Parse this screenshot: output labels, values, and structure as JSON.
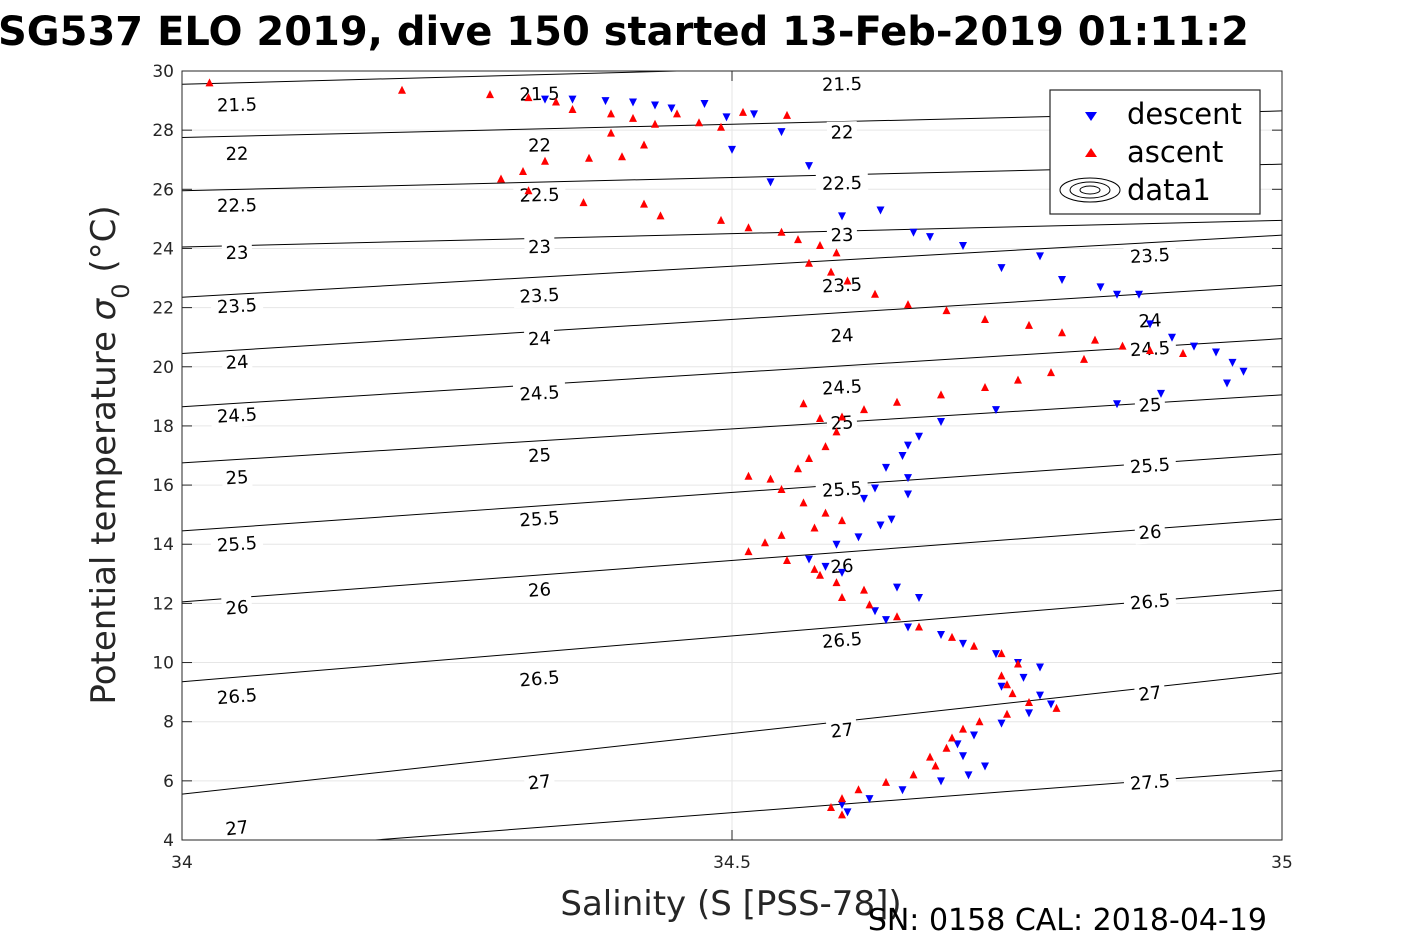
{
  "chart_data": {
    "type": "scatter",
    "title": "SG537 ELO 2019, dive 150 started 13-Feb-2019 01:11:2",
    "xlabel": "Salinity (S [PSS-78])",
    "ylabel_main": "Potential temperature ",
    "ylabel_symbol": "σ",
    "ylabel_sub": "0",
    "ylabel_unit": " (°C)",
    "footer": "SN: 0158  CAL: 2018-04-19",
    "xlim": [
      34,
      35
    ],
    "ylim": [
      4,
      30
    ],
    "x_ticks": [
      34,
      34.5,
      35
    ],
    "x_tick_labels": [
      "34",
      "34.5",
      "35"
    ],
    "y_ticks": [
      4,
      6,
      8,
      10,
      12,
      14,
      16,
      18,
      20,
      22,
      24,
      26,
      28,
      30
    ],
    "y_tick_labels": [
      "4",
      "6",
      "8",
      "10",
      "12",
      "14",
      "16",
      "18",
      "20",
      "22",
      "24",
      "26",
      "28",
      "30"
    ],
    "grid": true,
    "legend": {
      "position": "top-right",
      "entries": [
        {
          "label": "descent",
          "marker": "triangle-down",
          "color": "#0000ff"
        },
        {
          "label": "ascent",
          "marker": "triangle-up",
          "color": "#ff0000"
        },
        {
          "label": "data1",
          "marker": "contour",
          "color": "#000000"
        }
      ]
    },
    "contours": [
      {
        "level": "21.5",
        "ys": [
          29.55,
          30.55
        ],
        "labels": [
          {
            "s": 34.05,
            "y": 28.85
          },
          {
            "s": 34.325,
            "y": 29.22
          },
          {
            "s": 34.6,
            "y": 29.55
          }
        ]
      },
      {
        "level": "22",
        "ys": [
          27.75,
          28.65
        ],
        "labels": [
          {
            "s": 34.05,
            "y": 27.2
          },
          {
            "s": 34.325,
            "y": 27.48
          },
          {
            "s": 34.6,
            "y": 27.92
          }
        ]
      },
      {
        "level": "22.5",
        "ys": [
          25.95,
          26.85
        ],
        "labels": [
          {
            "s": 34.05,
            "y": 25.45
          },
          {
            "s": 34.325,
            "y": 25.8
          },
          {
            "s": 34.6,
            "y": 26.2
          }
        ]
      },
      {
        "level": "23",
        "ys": [
          24.05,
          24.95
        ],
        "labels": [
          {
            "s": 34.05,
            "y": 23.85
          },
          {
            "s": 34.325,
            "y": 24.05
          },
          {
            "s": 34.6,
            "y": 24.45
          }
        ]
      },
      {
        "level": "23.5",
        "ys": [
          22.35,
          24.45
        ],
        "labels": [
          {
            "s": 34.05,
            "y": 22.05
          },
          {
            "s": 34.325,
            "y": 22.4
          },
          {
            "s": 34.6,
            "y": 22.75
          },
          {
            "s": 34.88,
            "y": 23.75
          }
        ]
      },
      {
        "level": "24",
        "ys": [
          20.45,
          22.75
        ],
        "labels": [
          {
            "s": 34.05,
            "y": 20.15
          },
          {
            "s": 34.325,
            "y": 20.95
          },
          {
            "s": 34.6,
            "y": 21.05
          },
          {
            "s": 34.88,
            "y": 21.55
          }
        ]
      },
      {
        "level": "24.5",
        "ys": [
          18.65,
          20.95
        ],
        "labels": [
          {
            "s": 34.05,
            "y": 18.35
          },
          {
            "s": 34.325,
            "y": 19.1
          },
          {
            "s": 34.6,
            "y": 19.3
          },
          {
            "s": 34.88,
            "y": 20.6
          }
        ]
      },
      {
        "level": "25",
        "ys": [
          16.75,
          19.05
        ],
        "labels": [
          {
            "s": 34.05,
            "y": 16.25
          },
          {
            "s": 34.325,
            "y": 17.0
          },
          {
            "s": 34.6,
            "y": 18.1
          },
          {
            "s": 34.88,
            "y": 18.7
          }
        ]
      },
      {
        "level": "25.5",
        "ys": [
          14.45,
          17.05
        ],
        "labels": [
          {
            "s": 34.05,
            "y": 14.0
          },
          {
            "s": 34.325,
            "y": 14.85
          },
          {
            "s": 34.6,
            "y": 15.85
          },
          {
            "s": 34.88,
            "y": 16.65
          }
        ]
      },
      {
        "level": "26",
        "ys": [
          12.05,
          14.85
        ],
        "labels": [
          {
            "s": 34.05,
            "y": 11.85
          },
          {
            "s": 34.325,
            "y": 12.45
          },
          {
            "s": 34.6,
            "y": 13.25
          },
          {
            "s": 34.88,
            "y": 14.4
          }
        ]
      },
      {
        "level": "26.5",
        "ys": [
          9.35,
          12.45
        ],
        "labels": [
          {
            "s": 34.05,
            "y": 8.85
          },
          {
            "s": 34.325,
            "y": 9.45
          },
          {
            "s": 34.6,
            "y": 10.75
          },
          {
            "s": 34.88,
            "y": 12.05
          }
        ]
      },
      {
        "level": "27",
        "ys": [
          5.55,
          9.65
        ],
        "labels": [
          {
            "s": 34.05,
            "y": 4.4
          },
          {
            "s": 34.325,
            "y": 5.95
          },
          {
            "s": 34.6,
            "y": 7.7
          },
          {
            "s": 34.88,
            "y": 8.95
          }
        ]
      },
      {
        "level": "27.5",
        "ys": [
          3.5,
          6.35
        ],
        "labels": [
          {
            "s": 34.88,
            "y": 5.95
          }
        ]
      }
    ],
    "series": [
      {
        "name": "descent",
        "marker": "triangle-down",
        "color": "#0000ff",
        "points": [
          [
            34.33,
            29.05
          ],
          [
            34.355,
            29.05
          ],
          [
            34.385,
            29.0
          ],
          [
            34.41,
            28.95
          ],
          [
            34.43,
            28.85
          ],
          [
            34.445,
            28.75
          ],
          [
            34.475,
            28.9
          ],
          [
            34.495,
            28.45
          ],
          [
            34.52,
            28.55
          ],
          [
            34.545,
            27.95
          ],
          [
            34.5,
            27.35
          ],
          [
            34.535,
            26.25
          ],
          [
            34.57,
            26.8
          ],
          [
            34.6,
            25.1
          ],
          [
            34.635,
            25.3
          ],
          [
            34.665,
            24.55
          ],
          [
            34.68,
            24.4
          ],
          [
            34.71,
            24.1
          ],
          [
            34.745,
            23.35
          ],
          [
            34.78,
            23.75
          ],
          [
            34.8,
            22.95
          ],
          [
            34.835,
            22.7
          ],
          [
            34.85,
            22.45
          ],
          [
            34.87,
            22.45
          ],
          [
            34.88,
            21.45
          ],
          [
            34.9,
            21.0
          ],
          [
            34.92,
            20.7
          ],
          [
            34.94,
            20.5
          ],
          [
            34.955,
            20.15
          ],
          [
            34.965,
            19.85
          ],
          [
            34.89,
            19.1
          ],
          [
            34.85,
            18.75
          ],
          [
            34.95,
            19.45
          ],
          [
            34.74,
            18.55
          ],
          [
            34.69,
            18.15
          ],
          [
            34.67,
            17.65
          ],
          [
            34.66,
            17.35
          ],
          [
            34.655,
            17.0
          ],
          [
            34.64,
            16.6
          ],
          [
            34.66,
            16.25
          ],
          [
            34.63,
            15.9
          ],
          [
            34.62,
            15.55
          ],
          [
            34.66,
            15.7
          ],
          [
            34.645,
            14.85
          ],
          [
            34.635,
            14.65
          ],
          [
            34.615,
            14.25
          ],
          [
            34.595,
            14.0
          ],
          [
            34.57,
            13.5
          ],
          [
            34.585,
            13.25
          ],
          [
            34.6,
            13.05
          ],
          [
            34.65,
            12.55
          ],
          [
            34.67,
            12.2
          ],
          [
            34.63,
            11.75
          ],
          [
            34.64,
            11.45
          ],
          [
            34.66,
            11.2
          ],
          [
            34.69,
            10.95
          ],
          [
            34.71,
            10.65
          ],
          [
            34.74,
            10.3
          ],
          [
            34.76,
            10.0
          ],
          [
            34.78,
            9.85
          ],
          [
            34.765,
            9.5
          ],
          [
            34.745,
            9.2
          ],
          [
            34.78,
            8.9
          ],
          [
            34.79,
            8.6
          ],
          [
            34.77,
            8.3
          ],
          [
            34.745,
            7.95
          ],
          [
            34.72,
            7.55
          ],
          [
            34.705,
            7.25
          ],
          [
            34.71,
            6.85
          ],
          [
            34.73,
            6.5
          ],
          [
            34.715,
            6.2
          ],
          [
            34.69,
            6.0
          ],
          [
            34.655,
            5.7
          ],
          [
            34.625,
            5.4
          ],
          [
            34.6,
            5.2
          ],
          [
            34.605,
            4.95
          ]
        ]
      },
      {
        "name": "ascent",
        "marker": "triangle-up",
        "color": "#ff0000",
        "points": [
          [
            34.025,
            29.6
          ],
          [
            34.2,
            29.35
          ],
          [
            34.28,
            29.2
          ],
          [
            34.315,
            29.1
          ],
          [
            34.34,
            28.95
          ],
          [
            34.355,
            28.7
          ],
          [
            34.39,
            28.55
          ],
          [
            34.41,
            28.4
          ],
          [
            34.43,
            28.2
          ],
          [
            34.45,
            28.55
          ],
          [
            34.47,
            28.25
          ],
          [
            34.49,
            28.1
          ],
          [
            34.51,
            28.6
          ],
          [
            34.55,
            28.5
          ],
          [
            34.39,
            27.9
          ],
          [
            34.42,
            27.5
          ],
          [
            34.4,
            27.1
          ],
          [
            34.37,
            27.05
          ],
          [
            34.33,
            26.95
          ],
          [
            34.31,
            26.6
          ],
          [
            34.29,
            26.35
          ],
          [
            34.315,
            25.95
          ],
          [
            34.365,
            25.55
          ],
          [
            34.42,
            25.5
          ],
          [
            34.435,
            25.1
          ],
          [
            34.49,
            24.95
          ],
          [
            34.515,
            24.7
          ],
          [
            34.545,
            24.55
          ],
          [
            34.56,
            24.3
          ],
          [
            34.58,
            24.1
          ],
          [
            34.595,
            23.85
          ],
          [
            34.57,
            23.5
          ],
          [
            34.59,
            23.2
          ],
          [
            34.605,
            22.9
          ],
          [
            34.63,
            22.45
          ],
          [
            34.66,
            22.1
          ],
          [
            34.695,
            21.9
          ],
          [
            34.73,
            21.6
          ],
          [
            34.77,
            21.4
          ],
          [
            34.8,
            21.15
          ],
          [
            34.83,
            20.9
          ],
          [
            34.855,
            20.7
          ],
          [
            34.88,
            20.55
          ],
          [
            34.91,
            20.45
          ],
          [
            34.82,
            20.25
          ],
          [
            34.79,
            19.8
          ],
          [
            34.76,
            19.55
          ],
          [
            34.73,
            19.3
          ],
          [
            34.69,
            19.05
          ],
          [
            34.65,
            18.8
          ],
          [
            34.62,
            18.55
          ],
          [
            34.6,
            18.3
          ],
          [
            34.565,
            18.75
          ],
          [
            34.58,
            18.25
          ],
          [
            34.595,
            17.8
          ],
          [
            34.585,
            17.3
          ],
          [
            34.57,
            16.9
          ],
          [
            34.56,
            16.55
          ],
          [
            34.535,
            16.2
          ],
          [
            34.515,
            16.3
          ],
          [
            34.545,
            15.85
          ],
          [
            34.565,
            15.4
          ],
          [
            34.585,
            15.05
          ],
          [
            34.6,
            14.8
          ],
          [
            34.575,
            14.55
          ],
          [
            34.545,
            14.3
          ],
          [
            34.53,
            14.05
          ],
          [
            34.515,
            13.75
          ],
          [
            34.55,
            13.45
          ],
          [
            34.575,
            13.15
          ],
          [
            34.58,
            12.95
          ],
          [
            34.595,
            12.7
          ],
          [
            34.62,
            12.45
          ],
          [
            34.6,
            12.2
          ],
          [
            34.625,
            11.95
          ],
          [
            34.65,
            11.55
          ],
          [
            34.67,
            11.2
          ],
          [
            34.7,
            10.85
          ],
          [
            34.72,
            10.55
          ],
          [
            34.745,
            10.3
          ],
          [
            34.76,
            9.95
          ],
          [
            34.745,
            9.55
          ],
          [
            34.75,
            9.25
          ],
          [
            34.755,
            8.95
          ],
          [
            34.77,
            8.65
          ],
          [
            34.795,
            8.45
          ],
          [
            34.75,
            8.25
          ],
          [
            34.725,
            8.0
          ],
          [
            34.71,
            7.75
          ],
          [
            34.7,
            7.45
          ],
          [
            34.695,
            7.1
          ],
          [
            34.68,
            6.8
          ],
          [
            34.685,
            6.5
          ],
          [
            34.665,
            6.2
          ],
          [
            34.64,
            5.95
          ],
          [
            34.615,
            5.7
          ],
          [
            34.6,
            5.4
          ],
          [
            34.59,
            5.1
          ],
          [
            34.6,
            4.85
          ]
        ]
      }
    ]
  }
}
